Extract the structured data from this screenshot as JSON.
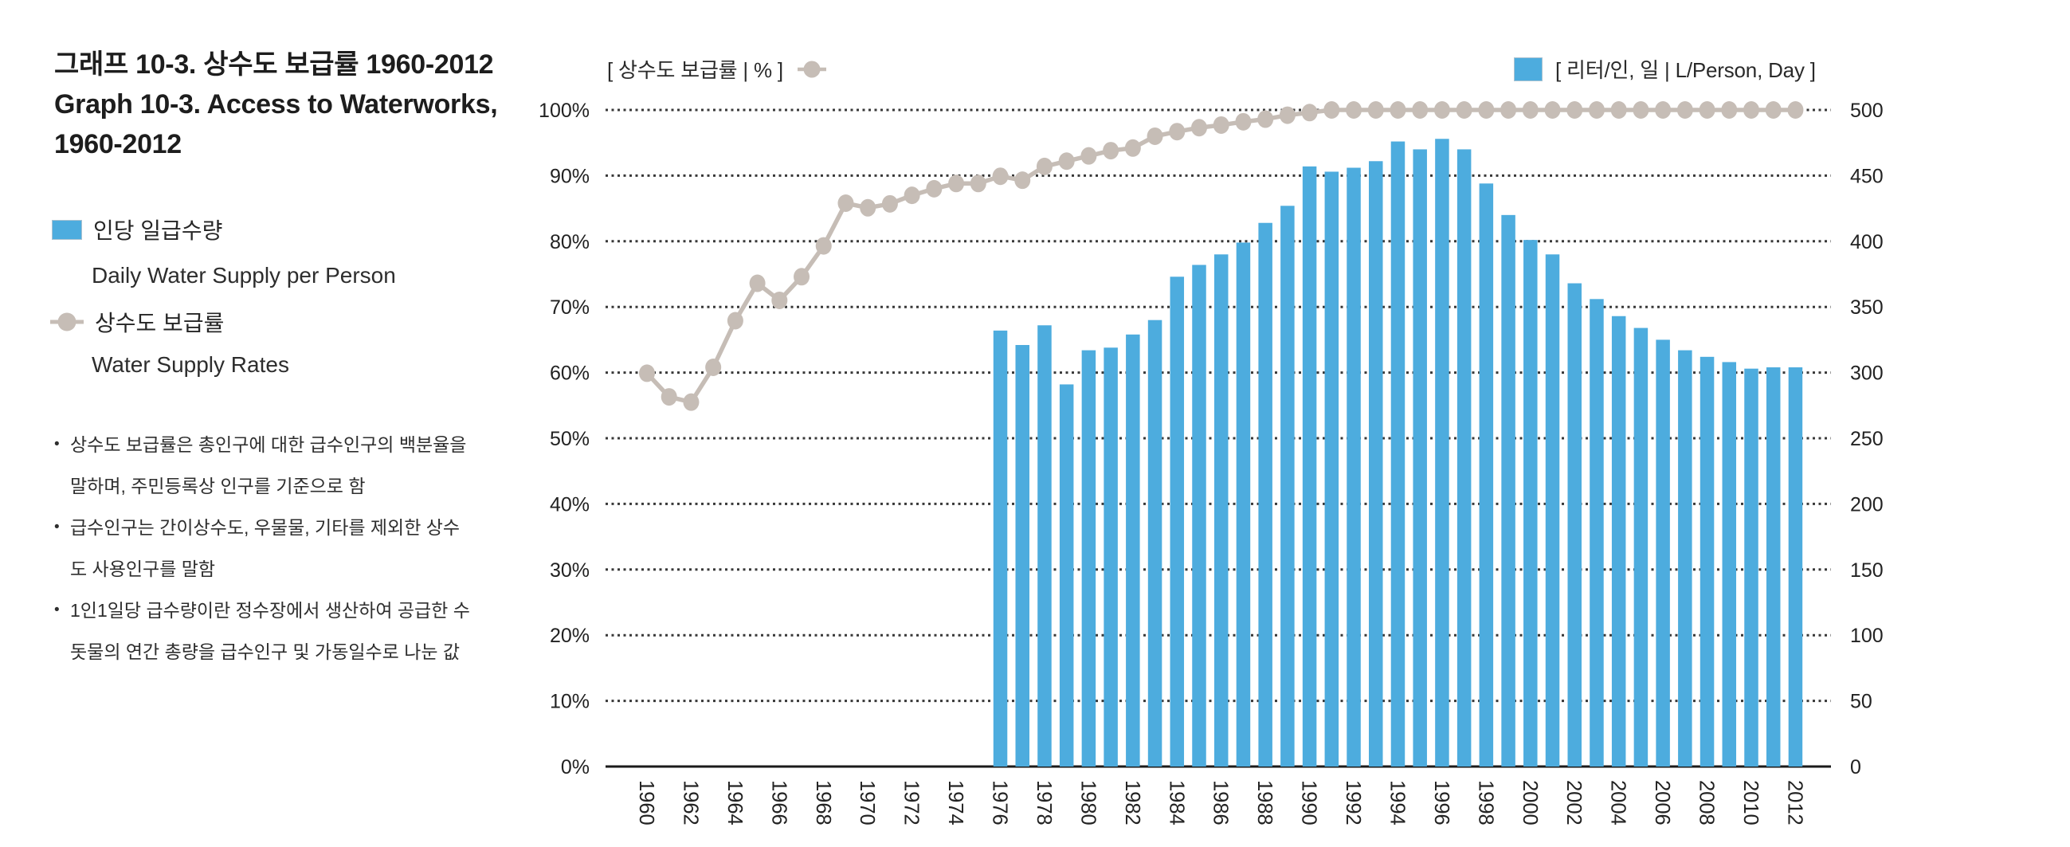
{
  "figure": {
    "title_lines": [
      "그래프 10-3. 상수도 보급률 1960-2012",
      "Graph 10-3. Access to Waterworks,",
      "1960-2012"
    ]
  },
  "legend": {
    "items": [
      {
        "label_ko": "인당 일급수량",
        "label_en": "Daily Water Supply per Person"
      },
      {
        "label_ko": "상수도 보급률",
        "label_en": "Water Supply Rates"
      }
    ]
  },
  "notes": [
    "상수도 보급률은 총인구에 대한 급수인구의 백분율을 말하며, 주민등록상 인구를 기준으로 함",
    "급수인구는 간이상수도, 우물물, 기타를 제외한 상수도 사용인구를 말함",
    "1인1일당 급수량이란 정수장에서 생산하여 공급한 수돗물의 연간 총량을 급수인구 및 가동일수로 나눈 값"
  ],
  "axis_titles": {
    "left": "[ 상수도 보급률 | % ]",
    "right": "[ 리터/인, 일 | L/Person, Day ]"
  },
  "colors": {
    "bar": "#4DACDE",
    "line": "#C6BDB6",
    "grid": "#383838",
    "axis": "#1a1a1a",
    "tick_text": "#222222"
  },
  "chart_data": {
    "type": "bar+line",
    "title": "그래프 10-3. 상수도 보급률 1960-2012 / Graph 10-3. Access to Waterworks, 1960-2012",
    "grid": "horizontal-dotted",
    "legend_position": "top",
    "x_tick_years": [
      1960,
      1962,
      1964,
      1966,
      1968,
      1970,
      1972,
      1974,
      1976,
      1978,
      1980,
      1982,
      1984,
      1986,
      1988,
      1990,
      1992,
      1994,
      1996,
      1998,
      2000,
      2002,
      2004,
      2006,
      2008,
      2010,
      2012
    ],
    "left_axis": {
      "label": "[ 상수도 보급률 | % ]",
      "unit": "%",
      "ylim": [
        0,
        100
      ],
      "ticks": [
        "0%",
        "10%",
        "20%",
        "30%",
        "40%",
        "50%",
        "60%",
        "70%",
        "80%",
        "90%",
        "100%"
      ]
    },
    "right_axis": {
      "label": "[ 리터/인, 일 | L/Person, Day ]",
      "unit": "L/Person, Day",
      "ylim": [
        0,
        500
      ],
      "ticks": [
        "0",
        "50",
        "100",
        "150",
        "200",
        "250",
        "300",
        "350",
        "400",
        "450",
        "500"
      ]
    },
    "series": [
      {
        "name_ko": "상수도 보급률",
        "name_en": "Water Supply Rates",
        "type": "line",
        "axis": "left",
        "unit": "%",
        "color": "#C6BDB6",
        "years": [
          1960,
          1961,
          1962,
          1963,
          1964,
          1965,
          1966,
          1967,
          1968,
          1969,
          1970,
          1971,
          1972,
          1973,
          1974,
          1975,
          1976,
          1977,
          1978,
          1979,
          1980,
          1981,
          1982,
          1983,
          1984,
          1985,
          1986,
          1987,
          1988,
          1989,
          1990,
          1991,
          1992,
          1993,
          1994,
          1995,
          1996,
          1997,
          1998,
          1999,
          2000,
          2001,
          2002,
          2003,
          2004,
          2005,
          2006,
          2007,
          2008,
          2009,
          2010,
          2011,
          2012
        ],
        "values": [
          59.9,
          56.3,
          55.5,
          60.8,
          67.9,
          73.6,
          71.0,
          74.6,
          79.3,
          85.8,
          85.1,
          85.7,
          87.0,
          88.0,
          88.8,
          88.8,
          89.9,
          89.3,
          91.4,
          92.2,
          93.0,
          93.8,
          94.2,
          96.0,
          96.7,
          97.3,
          97.7,
          98.2,
          98.6,
          99.2,
          99.6,
          100,
          100,
          100,
          100,
          100,
          100,
          100,
          100,
          100,
          100,
          100,
          100,
          100,
          100,
          100,
          100,
          100,
          100,
          100,
          100,
          100,
          100
        ]
      },
      {
        "name_ko": "인당 일급수량",
        "name_en": "Daily Water Supply per Person",
        "type": "bar",
        "axis": "right",
        "unit": "L/person/day",
        "color": "#4DACDE",
        "years": [
          1976,
          1977,
          1978,
          1979,
          1980,
          1981,
          1982,
          1983,
          1984,
          1985,
          1986,
          1987,
          1988,
          1989,
          1990,
          1991,
          1992,
          1993,
          1994,
          1995,
          1996,
          1997,
          1998,
          1999,
          2000,
          2001,
          2002,
          2003,
          2004,
          2005,
          2006,
          2007,
          2008,
          2009,
          2010,
          2011,
          2012
        ],
        "values": [
          332,
          321,
          336,
          291,
          317,
          319,
          329,
          340,
          373,
          382,
          390,
          399,
          414,
          427,
          457,
          453,
          456,
          461,
          476,
          470,
          478,
          470,
          444,
          420,
          401,
          390,
          368,
          356,
          343,
          334,
          325,
          317,
          312,
          308,
          303,
          304,
          304
        ]
      }
    ]
  }
}
